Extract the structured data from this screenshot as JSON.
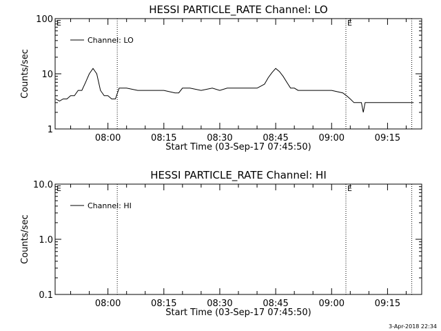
{
  "chart_data": [
    {
      "type": "line",
      "title": "HESSI PARTICLE_RATE Channel: LO",
      "ylabel": "Counts/sec",
      "xlabel": "Start Time (03-Sep-17 07:45:50)",
      "y_scale": "log",
      "ylim": [
        1,
        100
      ],
      "y_ticks": [
        "1",
        "10",
        "100"
      ],
      "xlim": [
        "07:45:50",
        "09:24:10"
      ],
      "x_ticks": [
        "08:00",
        "08:15",
        "08:30",
        "08:45",
        "09:00",
        "09:15"
      ],
      "flag_lines": [
        "08:02:30",
        "09:03:50",
        "09:21:30"
      ],
      "flag_labels": [
        {
          "text": "E",
          "x": "07:45:50"
        },
        {
          "text": "E",
          "x": "09:03:50"
        }
      ],
      "legend": {
        "label": "Channel: LO",
        "position": "top-left"
      },
      "series": [
        {
          "name": "Channel: LO",
          "x": [
            "07:46:00",
            "07:47:00",
            "07:48:00",
            "07:49:00",
            "07:50:00",
            "07:51:00",
            "07:52:00",
            "07:53:00",
            "07:54:00",
            "07:55:00",
            "07:56:00",
            "07:57:00",
            "07:58:00",
            "07:59:00",
            "08:00:00",
            "08:01:00",
            "08:02:00",
            "08:03:00",
            "08:05:00",
            "08:08:00",
            "08:10:00",
            "08:12:00",
            "08:15:00",
            "08:18:00",
            "08:19:00",
            "08:20:00",
            "08:22:00",
            "08:25:00",
            "08:28:00",
            "08:30:00",
            "08:32:00",
            "08:35:00",
            "08:38:00",
            "08:40:00",
            "08:42:00",
            "08:43:00",
            "08:44:00",
            "08:45:00",
            "08:46:00",
            "08:47:00",
            "08:48:00",
            "08:49:00",
            "08:50:00",
            "08:51:00",
            "08:53:00",
            "08:56:00",
            "09:00:00",
            "09:03:00",
            "09:04:00",
            "09:05:00",
            "09:06:00",
            "09:07:00",
            "09:08:00",
            "09:08:30",
            "09:09:00",
            "09:10:00",
            "09:12:00",
            "09:14:00",
            "09:16:00",
            "09:18:00",
            "09:20:00",
            "09:21:00",
            "09:22:00"
          ],
          "values": [
            3.5,
            3.2,
            3.5,
            3.5,
            4,
            4,
            5,
            5,
            7,
            10,
            12.5,
            10,
            5,
            4,
            4,
            3.5,
            3.5,
            5.5,
            5.5,
            5,
            5,
            5,
            5,
            4.5,
            4.5,
            5.5,
            5.5,
            5,
            5.5,
            5,
            5.5,
            5.5,
            5.5,
            5.5,
            6.5,
            8.5,
            10.5,
            12.5,
            11,
            9,
            7,
            5.5,
            5.5,
            5,
            5,
            5,
            5,
            4.5,
            4,
            3.5,
            3,
            3,
            3,
            2,
            3,
            3,
            3,
            3,
            3,
            3,
            3,
            3,
            3
          ]
        }
      ]
    },
    {
      "type": "line",
      "title": "HESSI PARTICLE_RATE Channel: HI",
      "ylabel": "Counts/sec",
      "xlabel": "Start Time (03-Sep-17 07:45:50)",
      "y_scale": "log",
      "ylim": [
        0.1,
        10
      ],
      "y_ticks": [
        "0.1",
        "1.0",
        "10.0"
      ],
      "xlim": [
        "07:45:50",
        "09:24:10"
      ],
      "x_ticks": [
        "08:00",
        "08:15",
        "08:30",
        "08:45",
        "09:00",
        "09:15"
      ],
      "flag_lines": [
        "08:02:30",
        "09:03:50",
        "09:21:30"
      ],
      "flag_labels": [
        {
          "text": "E",
          "x": "07:45:50"
        },
        {
          "text": "E",
          "x": "09:03:50"
        }
      ],
      "legend": {
        "label": "Channel: HI",
        "position": "top-left"
      },
      "series": []
    }
  ],
  "footer": {
    "date": "3-Apr-2018 22:34"
  }
}
